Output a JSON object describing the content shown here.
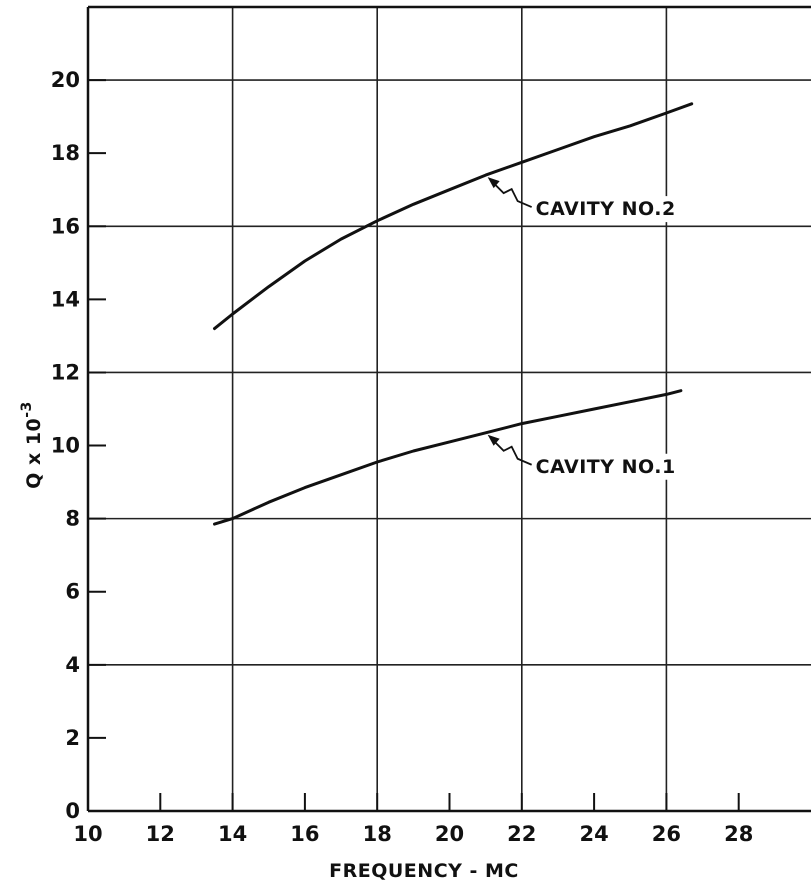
{
  "chart_data": {
    "type": "line",
    "xlabel": "FREQUENCY - MC",
    "ylabel_base": "Q x 10",
    "ylabel_exp": "-3",
    "xlim": [
      10,
      30
    ],
    "ylim": [
      0,
      22
    ],
    "x_ticks": [
      10,
      12,
      14,
      16,
      18,
      20,
      22,
      24,
      26,
      28
    ],
    "y_ticks": [
      0,
      2,
      4,
      6,
      8,
      10,
      12,
      14,
      16,
      18,
      20
    ],
    "grid": true,
    "series": [
      {
        "name": "CAVITY NO.2",
        "x": [
          13.5,
          14,
          15,
          16,
          17,
          18,
          19,
          20,
          21,
          22,
          23,
          24,
          25,
          26,
          26.7
        ],
        "y": [
          13.2,
          13.6,
          14.35,
          15.05,
          15.65,
          16.15,
          16.6,
          17.0,
          17.4,
          17.75,
          18.1,
          18.45,
          18.75,
          19.1,
          19.35
        ]
      },
      {
        "name": "CAVITY NO.1",
        "x": [
          13.5,
          14,
          15,
          16,
          17,
          18,
          19,
          20,
          21,
          22,
          23,
          24,
          25,
          26,
          26.4
        ],
        "y": [
          7.85,
          8.0,
          8.45,
          8.85,
          9.2,
          9.55,
          9.85,
          10.1,
          10.35,
          10.6,
          10.8,
          11.0,
          11.2,
          11.4,
          11.5
        ]
      }
    ],
    "annotations": [
      {
        "text": "CAVITY NO.2",
        "series": 0,
        "point_x": 21.0
      },
      {
        "text": "CAVITY NO.1",
        "series": 1,
        "point_x": 21.0
      }
    ]
  }
}
